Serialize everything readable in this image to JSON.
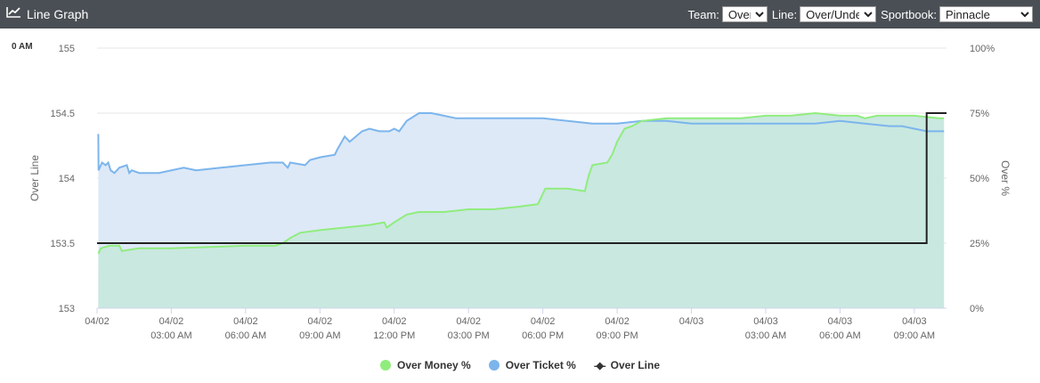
{
  "header": {
    "title": "Line Graph",
    "icon": "line-chart-icon",
    "team_label": "Team:",
    "team_value": "Over",
    "line_label": "Line:",
    "line_value": "Over/Under",
    "sportbook_label": "Sportbook:",
    "sportbook_value": "Pinnacle"
  },
  "corner_text": "0 AM",
  "chart_data": {
    "type": "area",
    "x_unit": "hours since 04/02 12:00 AM",
    "xlim": [
      0,
      34.3
    ],
    "x_ticks": [
      {
        "x": 0,
        "date": "04/02",
        "time": ""
      },
      {
        "x": 3,
        "date": "04/02",
        "time": "03:00 AM"
      },
      {
        "x": 6,
        "date": "04/02",
        "time": "06:00 AM"
      },
      {
        "x": 9,
        "date": "04/02",
        "time": "09:00 AM"
      },
      {
        "x": 12,
        "date": "04/02",
        "time": "12:00 PM"
      },
      {
        "x": 15,
        "date": "04/02",
        "time": "03:00 PM"
      },
      {
        "x": 18,
        "date": "04/02",
        "time": "06:00 PM"
      },
      {
        "x": 21,
        "date": "04/02",
        "time": "09:00 PM"
      },
      {
        "x": 24,
        "date": "04/03",
        "time": ""
      },
      {
        "x": 27,
        "date": "04/03",
        "time": "03:00 AM"
      },
      {
        "x": 30,
        "date": "04/03",
        "time": "06:00 AM"
      },
      {
        "x": 33,
        "date": "04/03",
        "time": "09:00 AM"
      }
    ],
    "left_axis": {
      "label": "Over Line",
      "ylim": [
        153,
        155
      ],
      "ticks": [
        153,
        153.5,
        154,
        154.5,
        155
      ],
      "tick_labels": [
        "153",
        "153.5",
        "154",
        "154.5",
        "155"
      ]
    },
    "right_axis": {
      "label": "Over %",
      "ylim": [
        0,
        100
      ],
      "ticks": [
        0,
        25,
        50,
        75,
        100
      ],
      "tick_labels": [
        "0%",
        "25%",
        "50%",
        "75%",
        "100%"
      ]
    },
    "grid": true,
    "legend_position": "bottom",
    "series": [
      {
        "name": "Over Ticket %",
        "axis": "right",
        "color": "#7cb5ec",
        "fill": "#dde9f7",
        "points": [
          [
            0.05,
            67
          ],
          [
            0.06,
            53
          ],
          [
            0.2,
            56
          ],
          [
            0.35,
            55
          ],
          [
            0.45,
            56
          ],
          [
            0.55,
            53
          ],
          [
            0.7,
            52
          ],
          [
            0.9,
            54
          ],
          [
            1.2,
            55
          ],
          [
            1.3,
            52
          ],
          [
            1.4,
            53
          ],
          [
            1.7,
            52
          ],
          [
            2.5,
            52
          ],
          [
            3.5,
            54
          ],
          [
            4,
            53
          ],
          [
            5,
            54
          ],
          [
            6,
            55
          ],
          [
            7,
            56
          ],
          [
            7.5,
            56
          ],
          [
            7.7,
            54
          ],
          [
            7.8,
            56
          ],
          [
            8.4,
            55
          ],
          [
            8.6,
            57
          ],
          [
            9,
            58
          ],
          [
            9.6,
            59
          ],
          [
            9.7,
            61
          ],
          [
            10,
            66
          ],
          [
            10.2,
            64
          ],
          [
            10.7,
            68
          ],
          [
            11,
            69
          ],
          [
            11.4,
            68
          ],
          [
            11.8,
            68
          ],
          [
            12,
            69
          ],
          [
            12.2,
            68
          ],
          [
            12.5,
            72
          ],
          [
            13,
            75
          ],
          [
            13.5,
            75
          ],
          [
            14,
            74
          ],
          [
            14.5,
            73
          ],
          [
            15,
            73
          ],
          [
            16,
            73
          ],
          [
            17,
            73
          ],
          [
            18,
            73
          ],
          [
            19,
            72
          ],
          [
            20,
            71
          ],
          [
            21,
            71
          ],
          [
            22,
            72
          ],
          [
            23,
            72
          ],
          [
            24,
            71
          ],
          [
            25,
            71
          ],
          [
            26,
            71
          ],
          [
            27,
            71
          ],
          [
            28,
            71
          ],
          [
            29,
            71
          ],
          [
            30,
            72
          ],
          [
            31,
            71
          ],
          [
            32,
            70
          ],
          [
            32.5,
            70
          ],
          [
            33,
            69
          ],
          [
            33.5,
            68
          ],
          [
            34,
            68
          ],
          [
            34.2,
            68
          ]
        ]
      },
      {
        "name": "Over Money %",
        "axis": "right",
        "color": "#90ed7d",
        "fill": "#c9e8e0",
        "points": [
          [
            0.05,
            21
          ],
          [
            0.15,
            23
          ],
          [
            0.5,
            24
          ],
          [
            0.9,
            24
          ],
          [
            1,
            22
          ],
          [
            1.7,
            23
          ],
          [
            3,
            23
          ],
          [
            6,
            24
          ],
          [
            7.2,
            24
          ],
          [
            7.5,
            25
          ],
          [
            7.8,
            27
          ],
          [
            8.2,
            29
          ],
          [
            9,
            30
          ],
          [
            10,
            31
          ],
          [
            11,
            32
          ],
          [
            11.6,
            33
          ],
          [
            11.7,
            31
          ],
          [
            12,
            33
          ],
          [
            12.5,
            36
          ],
          [
            13,
            37
          ],
          [
            14,
            37
          ],
          [
            15,
            38
          ],
          [
            16,
            38
          ],
          [
            17,
            39
          ],
          [
            17.8,
            40
          ],
          [
            18.1,
            46
          ],
          [
            18.5,
            46
          ],
          [
            19,
            46
          ],
          [
            19.7,
            45
          ],
          [
            19.85,
            51
          ],
          [
            20,
            55
          ],
          [
            20.6,
            56
          ],
          [
            20.8,
            59
          ],
          [
            21,
            64
          ],
          [
            21.3,
            69
          ],
          [
            21.6,
            70
          ],
          [
            22,
            72
          ],
          [
            23,
            73
          ],
          [
            24,
            73
          ],
          [
            25,
            73
          ],
          [
            26,
            73
          ],
          [
            27,
            74
          ],
          [
            28,
            74
          ],
          [
            29,
            75
          ],
          [
            30,
            74
          ],
          [
            30.7,
            74
          ],
          [
            31,
            73
          ],
          [
            31.5,
            74
          ],
          [
            32,
            74
          ],
          [
            33,
            74
          ],
          [
            34,
            73
          ],
          [
            34.2,
            73
          ]
        ]
      },
      {
        "name": "Over Line",
        "axis": "left",
        "color": "#222222",
        "step": true,
        "points": [
          [
            0,
            153.5
          ],
          [
            33.5,
            153.5
          ],
          [
            33.5,
            154.5
          ],
          [
            34.3,
            154.5
          ]
        ]
      }
    ]
  },
  "legend": [
    {
      "label": "Over Money %",
      "color": "#90ed7d",
      "symbol": "dot"
    },
    {
      "label": "Over Ticket %",
      "color": "#7cb5ec",
      "symbol": "dot"
    },
    {
      "label": "Over Line",
      "color": "#222222",
      "symbol": "line"
    }
  ]
}
